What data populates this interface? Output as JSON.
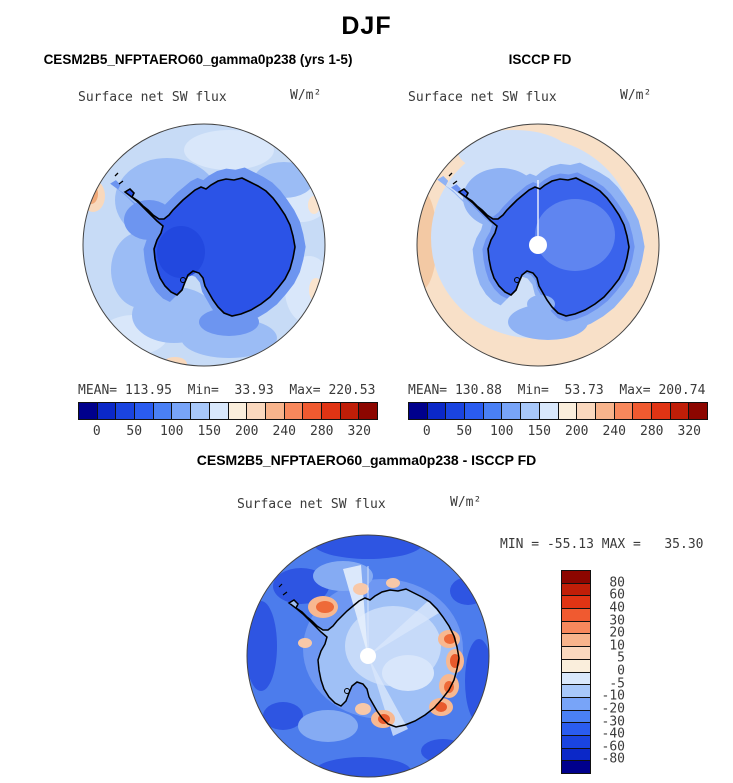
{
  "figure_title": "DJF",
  "panels": {
    "model": {
      "title": "CESM2B5_NFPTAERO60_gamma0p238 (yrs 1-5)",
      "field_label": "Surface net SW flux",
      "units": "W/m²",
      "stats_line": "MEAN= 113.95  Min=  33.93  Max= 220.53"
    },
    "obs": {
      "title": "ISCCP FD",
      "field_label": "Surface net SW flux",
      "units": "W/m²",
      "stats_line": "MEAN= 130.88  Min=  53.73  Max= 200.74"
    },
    "diff": {
      "title": "CESM2B5_NFPTAERO60_gamma0p238 - ISCCP FD",
      "field_label": "Surface net SW flux",
      "units": "W/m²",
      "stats_line": "MIN = -55.13 MAX =   35.30"
    }
  },
  "chart_data": {
    "type": "heatmap",
    "title": "DJF",
    "panels": [
      {
        "name": "CESM2B5_NFPTAERO60_gamma0p238 (yrs 1-5)",
        "variable": "Surface net SW flux",
        "units": "W/m2",
        "stats": {
          "mean": 113.95,
          "min": 33.93,
          "max": 220.53
        },
        "colorbar": {
          "orientation": "horizontal",
          "tick_labels": [
            "0",
            "50",
            "100",
            "150",
            "200",
            "240",
            "280",
            "320"
          ],
          "levels": [
            0,
            25,
            50,
            75,
            100,
            125,
            150,
            175,
            200,
            220,
            240,
            260,
            280,
            300,
            320
          ]
        }
      },
      {
        "name": "ISCCP FD",
        "variable": "Surface net SW flux",
        "units": "W/m2",
        "stats": {
          "mean": 130.88,
          "min": 53.73,
          "max": 200.74
        },
        "colorbar": {
          "orientation": "horizontal",
          "tick_labels": [
            "0",
            "50",
            "100",
            "150",
            "200",
            "240",
            "280",
            "320"
          ],
          "levels": [
            0,
            25,
            50,
            75,
            100,
            125,
            150,
            175,
            200,
            220,
            240,
            260,
            280,
            300,
            320
          ]
        }
      },
      {
        "name": "CESM2B5_NFPTAERO60_gamma0p238 - ISCCP FD",
        "variable": "Surface net SW flux",
        "units": "W/m2",
        "stats": {
          "min": -55.13,
          "max": 35.3
        },
        "colorbar": {
          "orientation": "vertical",
          "tick_labels": [
            "80",
            "60",
            "40",
            "30",
            "20",
            "10",
            "5",
            "0",
            "-5",
            "-10",
            "-20",
            "-30",
            "-40",
            "-60",
            "-80"
          ],
          "levels": [
            -80,
            -60,
            -40,
            -30,
            -20,
            -10,
            -5,
            0,
            5,
            10,
            20,
            30,
            40,
            60,
            80
          ]
        }
      }
    ],
    "palette_low_to_high": [
      "#00008C",
      "#0B28C8",
      "#1A44E0",
      "#2A5CF0",
      "#4A80F5",
      "#78A4F8",
      "#A8C8FA",
      "#D9E8FC",
      "#FAEEDC",
      "#FAD8BE",
      "#F8B48C",
      "#F8885C",
      "#F05A30",
      "#E03414",
      "#C01E08",
      "#8C0600"
    ]
  }
}
